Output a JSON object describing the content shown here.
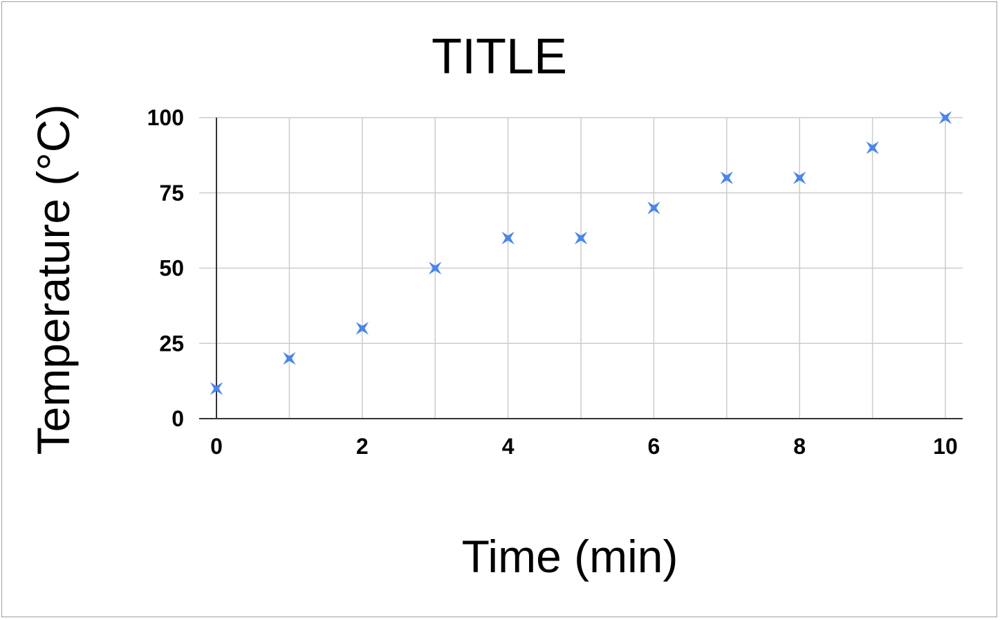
{
  "chart_data": {
    "type": "scatter",
    "title": "TITLE",
    "xlabel": "Time (min)",
    "ylabel": "Temperature (°C)",
    "xlim": [
      0,
      10
    ],
    "ylim": [
      0,
      100
    ],
    "x_ticks": [
      0,
      2,
      4,
      6,
      8,
      10
    ],
    "y_ticks": [
      0,
      25,
      50,
      75,
      100
    ],
    "grid": true,
    "marker": "star-cross",
    "series": [
      {
        "color": "#4a86e8",
        "x": [
          0,
          1,
          2,
          3,
          4,
          5,
          6,
          7,
          8,
          9,
          10
        ],
        "y": [
          10,
          20,
          30,
          50,
          60,
          60,
          70,
          80,
          80,
          90,
          100
        ]
      }
    ]
  }
}
